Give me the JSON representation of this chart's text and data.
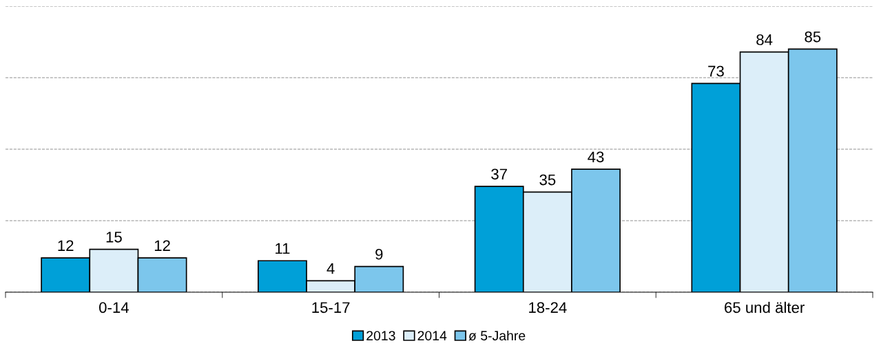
{
  "chart_data": {
    "type": "bar",
    "categories": [
      "0-14",
      "15-17",
      "18-24",
      "65 und älter"
    ],
    "series": [
      {
        "name": "2013",
        "color": "#00a0d8",
        "values": [
          12,
          11,
          37,
          73
        ]
      },
      {
        "name": "2014",
        "color": "#dceef9",
        "values": [
          15,
          4,
          35,
          84
        ]
      },
      {
        "name": "ø 5-Jahre",
        "color": "#7cc6ec",
        "values": [
          12,
          9,
          43,
          85
        ]
      }
    ],
    "ylim": [
      0,
      100
    ],
    "yticks": [
      {
        "value": 0,
        "label": null
      },
      {
        "value": 25,
        "label": null
      },
      {
        "value": 50,
        "label": null
      },
      {
        "value": 75,
        "label": null
      },
      {
        "value": 100,
        "label": null
      }
    ],
    "tick_labels": "x",
    "grid": "y",
    "data_labels": true,
    "legend": "bottom"
  }
}
